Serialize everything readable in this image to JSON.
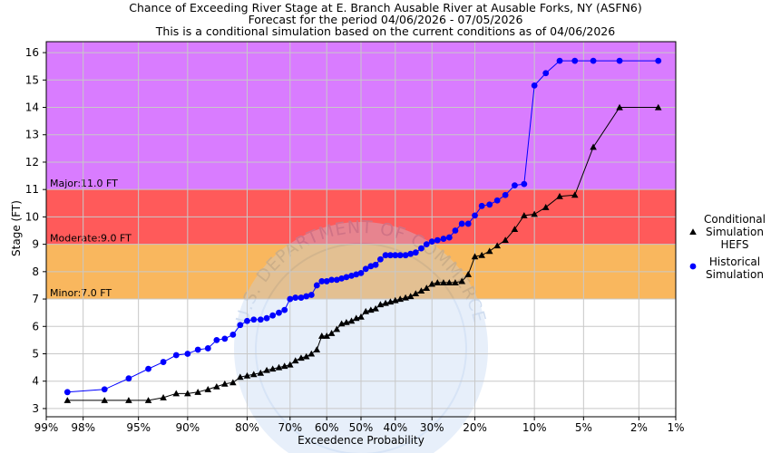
{
  "chart_data": {
    "type": "scatter",
    "title_lines": [
      "Chance of Exceeding River Stage at E. Branch Ausable River at Ausable Forks, NY (ASFN6)",
      "Forecast for the period 04/06/2026 - 07/05/2026",
      "This is a conditional simulation based on the current conditions as of 04/06/2026"
    ],
    "xlabel": "Exceedence Probability",
    "ylabel": "Stage (FT)",
    "x_scale": "normal-probability",
    "x_ticks": [
      99,
      98,
      95,
      90,
      80,
      70,
      60,
      50,
      40,
      30,
      20,
      10,
      5,
      2,
      1
    ],
    "x_tick_labels": [
      "99%",
      "98%",
      "95%",
      "90%",
      "80%",
      "70%",
      "60%",
      "50%",
      "40%",
      "30%",
      "20%",
      "10%",
      "5%",
      "2%",
      "1%"
    ],
    "ylim": [
      2.7,
      16.4
    ],
    "y_ticks": [
      3,
      4,
      5,
      6,
      7,
      8,
      9,
      10,
      11,
      12,
      13,
      14,
      15,
      16
    ],
    "grid": true,
    "legend_position": "right",
    "flood_bands": [
      {
        "label": "Minor:7.0 FT",
        "from": 7.0,
        "to": 9.0,
        "color": "#f9b75e"
      },
      {
        "label": "Moderate:9.0 FT",
        "from": 9.0,
        "to": 11.0,
        "color": "#ff5a5a"
      },
      {
        "label": "Major:11.0 FT",
        "from": 11.0,
        "to": 16.4,
        "color": "#d97cff"
      }
    ],
    "watermark": "U.S. DEPARTMENT OF COMMERCE",
    "series": [
      {
        "name": "Conditional Simulation HEFS",
        "legend_lines": [
          "Conditional",
          "Simulation",
          "HEFS"
        ],
        "marker": "triangle",
        "color": "#000000",
        "x": [
          98.5,
          97.1,
          95.7,
          94.2,
          92.8,
          91.4,
          90.0,
          88.6,
          87.1,
          85.7,
          84.3,
          82.8,
          81.4,
          80.0,
          78.6,
          77.1,
          75.7,
          74.3,
          72.8,
          71.4,
          70.0,
          68.6,
          67.1,
          65.7,
          64.3,
          62.8,
          61.4,
          60.0,
          58.6,
          57.1,
          55.7,
          54.3,
          52.8,
          51.4,
          50.0,
          48.6,
          47.1,
          45.7,
          44.3,
          42.8,
          41.4,
          40.0,
          38.6,
          37.1,
          35.7,
          34.3,
          32.8,
          31.4,
          30.0,
          28.6,
          27.1,
          25.7,
          24.3,
          22.8,
          21.4,
          20.0,
          18.6,
          17.1,
          15.7,
          14.3,
          12.8,
          11.4,
          10.0,
          8.6,
          7.1,
          5.7,
          4.3,
          2.8,
          1.4
        ],
        "y": [
          3.3,
          3.3,
          3.3,
          3.3,
          3.4,
          3.55,
          3.55,
          3.6,
          3.7,
          3.8,
          3.9,
          3.95,
          4.15,
          4.2,
          4.25,
          4.3,
          4.4,
          4.45,
          4.5,
          4.55,
          4.6,
          4.75,
          4.85,
          4.9,
          5.0,
          5.15,
          5.65,
          5.65,
          5.75,
          5.9,
          6.1,
          6.15,
          6.2,
          6.3,
          6.35,
          6.55,
          6.6,
          6.65,
          6.8,
          6.85,
          6.9,
          6.95,
          7.0,
          7.05,
          7.1,
          7.2,
          7.3,
          7.4,
          7.55,
          7.6,
          7.6,
          7.6,
          7.6,
          7.65,
          7.9,
          8.55,
          8.6,
          8.75,
          8.95,
          9.15,
          9.55,
          10.05,
          10.1,
          10.35,
          10.75,
          10.8,
          12.55,
          14.0,
          14.0
        ]
      },
      {
        "name": "Historical Simulation",
        "legend_lines": [
          "Historical",
          "Simulation"
        ],
        "marker": "circle",
        "color": "#0000ff",
        "x": [
          98.5,
          97.1,
          95.7,
          94.2,
          92.8,
          91.4,
          90.0,
          88.6,
          87.1,
          85.7,
          84.3,
          82.8,
          81.4,
          80.0,
          78.6,
          77.1,
          75.7,
          74.3,
          72.8,
          71.4,
          70.0,
          68.6,
          67.1,
          65.7,
          64.3,
          62.8,
          61.4,
          60.0,
          58.6,
          57.1,
          55.7,
          54.3,
          52.8,
          51.4,
          50.0,
          48.6,
          47.1,
          45.7,
          44.3,
          42.8,
          41.4,
          40.0,
          38.6,
          37.1,
          35.7,
          34.3,
          32.8,
          31.4,
          30.0,
          28.6,
          27.1,
          25.7,
          24.3,
          22.8,
          21.4,
          20.0,
          18.6,
          17.1,
          15.7,
          14.3,
          12.8,
          11.4,
          10.0,
          8.6,
          7.1,
          5.7,
          4.3,
          2.8,
          1.4
        ],
        "y": [
          3.6,
          3.7,
          4.1,
          4.45,
          4.7,
          4.95,
          5.0,
          5.15,
          5.2,
          5.5,
          5.55,
          5.7,
          6.05,
          6.2,
          6.25,
          6.25,
          6.3,
          6.4,
          6.5,
          6.6,
          7.0,
          7.05,
          7.05,
          7.1,
          7.15,
          7.5,
          7.65,
          7.65,
          7.7,
          7.7,
          7.75,
          7.8,
          7.85,
          7.9,
          7.95,
          8.1,
          8.2,
          8.25,
          8.45,
          8.6,
          8.6,
          8.6,
          8.6,
          8.6,
          8.65,
          8.7,
          8.85,
          9.0,
          9.1,
          9.15,
          9.2,
          9.25,
          9.5,
          9.75,
          9.75,
          10.05,
          10.4,
          10.45,
          10.6,
          10.8,
          11.15,
          11.2,
          14.8,
          15.25,
          15.7,
          15.7,
          15.7,
          15.7,
          15.7
        ]
      }
    ]
  }
}
